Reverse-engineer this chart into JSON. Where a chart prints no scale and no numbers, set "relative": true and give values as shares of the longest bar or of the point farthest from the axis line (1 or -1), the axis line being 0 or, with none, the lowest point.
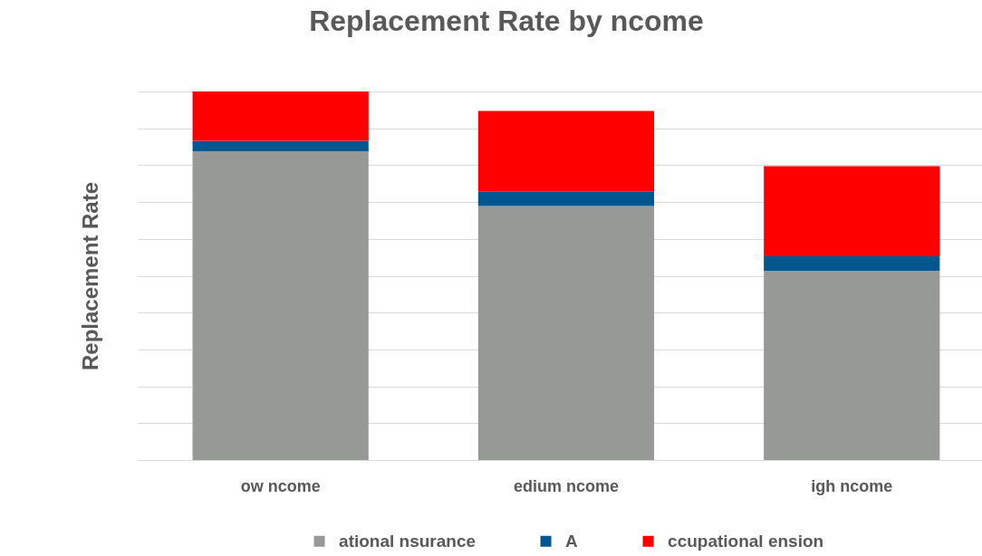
{
  "chart_data": {
    "type": "bar",
    "title": "Replacement Rate by ncome",
    "ylabel": "Replacement Rate",
    "categories": [
      "ow ncome",
      "edium ncome",
      "igh ncome"
    ],
    "series": [
      {
        "name": "ational nsurance",
        "color": "#979997",
        "values": [
          0.838,
          0.689,
          0.513
        ]
      },
      {
        "name": "A",
        "color": "#00578f",
        "values": [
          0.028,
          0.04,
          0.04
        ]
      },
      {
        "name": "ccupational ension",
        "color": "#ff0000",
        "values": [
          0.134,
          0.218,
          0.244
        ]
      }
    ],
    "stacked": true,
    "relative": true,
    "grid": "y",
    "legend": "bottom"
  }
}
